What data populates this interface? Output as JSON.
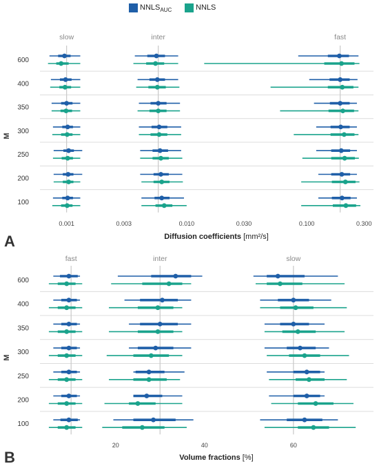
{
  "colors": {
    "nnls_auc": "#1f5fa8",
    "nnls": "#1aa38c",
    "grid": "#dcdcdc",
    "ref": "#c8c8c8"
  },
  "legend": {
    "auc_prefix": "NNLS",
    "auc_sub": "AUC",
    "nnls_label": "NNLS"
  },
  "chart_data": [
    {
      "type": "forest",
      "panel_label": "A",
      "xscale": "log",
      "xlabel_bold": "Diffusion coefficients",
      "xlabel_unit": "[mm²/s]",
      "ylabel": "M",
      "xlim": [
        0.0006,
        0.36
      ],
      "xticks": [
        0.001,
        0.003,
        0.01,
        0.03,
        0.1,
        0.3
      ],
      "xtick_labels": [
        "0.001",
        "0.003",
        "0.010",
        "0.030",
        "0.100",
        "0.300"
      ],
      "groups": [
        "slow",
        "inter",
        "fast"
      ],
      "group_label_x": [
        0.001,
        0.0058,
        0.19
      ],
      "reference_lines": [
        0.001,
        0.0058,
        0.19
      ],
      "rows": [
        "600",
        "400",
        "350",
        "300",
        "250",
        "200",
        "100"
      ],
      "series": [
        {
          "name": "NNLS_AUC",
          "points": {
            "slow": [
              [
                0.00096,
                0.00072,
                0.0013,
                0.00085,
                0.00108
              ],
              [
                0.00098,
                0.00074,
                0.0013,
                0.00088,
                0.0011
              ],
              [
                0.001,
                0.00075,
                0.0013,
                0.0009,
                0.00112
              ],
              [
                0.00102,
                0.00077,
                0.0013,
                0.00092,
                0.00113
              ],
              [
                0.00104,
                0.00078,
                0.00135,
                0.00094,
                0.00115
              ],
              [
                0.00103,
                0.00078,
                0.00135,
                0.00093,
                0.00114
              ],
              [
                0.00102,
                0.00077,
                0.0013,
                0.00092,
                0.00113
              ]
            ],
            "inter": [
              [
                0.0056,
                0.0037,
                0.0085,
                0.0047,
                0.0066
              ],
              [
                0.0057,
                0.0039,
                0.0085,
                0.0049,
                0.0066
              ],
              [
                0.0058,
                0.004,
                0.0088,
                0.005,
                0.0068
              ],
              [
                0.0059,
                0.004,
                0.009,
                0.0051,
                0.0069
              ],
              [
                0.006,
                0.0041,
                0.009,
                0.0052,
                0.007
              ],
              [
                0.0061,
                0.0041,
                0.0092,
                0.0053,
                0.0071
              ],
              [
                0.0062,
                0.0042,
                0.0095,
                0.0054,
                0.0072
              ]
            ],
            "fast": [
              [
                0.187,
                0.085,
                0.27,
                0.15,
                0.225
              ],
              [
                0.19,
                0.105,
                0.265,
                0.155,
                0.228
              ],
              [
                0.19,
                0.115,
                0.262,
                0.156,
                0.228
              ],
              [
                0.192,
                0.12,
                0.262,
                0.158,
                0.228
              ],
              [
                0.194,
                0.12,
                0.262,
                0.16,
                0.23
              ],
              [
                0.196,
                0.125,
                0.262,
                0.16,
                0.23
              ],
              [
                0.197,
                0.125,
                0.262,
                0.162,
                0.232
              ]
            ]
          }
        },
        {
          "name": "NNLS",
          "points": {
            "slow": [
              [
                0.0009,
                0.0007,
                0.0013,
                0.00082,
                0.00104
              ],
              [
                0.00097,
                0.00073,
                0.0013,
                0.00087,
                0.00109
              ],
              [
                0.00099,
                0.00075,
                0.0013,
                0.00089,
                0.00111
              ],
              [
                0.00101,
                0.00076,
                0.0013,
                0.0009,
                0.00112
              ],
              [
                0.00102,
                0.00077,
                0.0013,
                0.00091,
                0.00113
              ],
              [
                0.00104,
                0.00078,
                0.0013,
                0.00093,
                0.00114
              ],
              [
                0.00101,
                0.00076,
                0.0013,
                0.0009,
                0.00112
              ]
            ],
            "inter": [
              [
                0.0055,
                0.0036,
                0.0085,
                0.0046,
                0.0065
              ],
              [
                0.0057,
                0.0038,
                0.0087,
                0.0048,
                0.0067
              ],
              [
                0.0058,
                0.0039,
                0.0088,
                0.0049,
                0.0068
              ],
              [
                0.0059,
                0.004,
                0.009,
                0.005,
                0.0069
              ],
              [
                0.0061,
                0.0041,
                0.0092,
                0.0052,
                0.0071
              ],
              [
                0.0062,
                0.0042,
                0.0093,
                0.0053,
                0.0072
              ],
              [
                0.0065,
                0.0042,
                0.01,
                0.0055,
                0.0076
              ]
            ],
            "fast": [
              [
                0.195,
                0.014,
                0.275,
                0.14,
                0.25
              ],
              [
                0.198,
                0.05,
                0.27,
                0.15,
                0.245
              ],
              [
                0.2,
                0.06,
                0.27,
                0.152,
                0.248
              ],
              [
                0.205,
                0.078,
                0.27,
                0.158,
                0.25
              ],
              [
                0.207,
                0.092,
                0.272,
                0.16,
                0.252
              ],
              [
                0.21,
                0.09,
                0.275,
                0.162,
                0.255
              ],
              [
                0.212,
                0.09,
                0.28,
                0.165,
                0.258
              ]
            ]
          }
        }
      ]
    },
    {
      "type": "forest",
      "panel_label": "B",
      "xscale": "linear",
      "xlabel_bold": "Volume fractions",
      "xlabel_unit": "[%]",
      "ylabel": "M",
      "xlim": [
        3,
        78
      ],
      "xticks": [
        20,
        40,
        60
      ],
      "xtick_labels": [
        "20",
        "40",
        "60"
      ],
      "groups": [
        "fast",
        "inter",
        "slow"
      ],
      "group_label_x": [
        10,
        30,
        60
      ],
      "reference_lines": [
        10,
        30,
        60
      ],
      "rows": [
        "600",
        "400",
        "350",
        "300",
        "250",
        "200",
        "100"
      ],
      "series": [
        {
          "name": "NNLS_AUC",
          "points": {
            "fast": [
              [
                9.5,
                6,
                12,
                7.5,
                11.5
              ],
              [
                9.5,
                6,
                12,
                7.8,
                11.3
              ],
              [
                9.5,
                6,
                12,
                7.8,
                11.3
              ],
              [
                9.5,
                6,
                12,
                7.8,
                11.3
              ],
              [
                9.5,
                6,
                12,
                7.8,
                11.3
              ],
              [
                9.5,
                6,
                12,
                7.8,
                11.3
              ],
              [
                9.5,
                6,
                12,
                7.6,
                11.5
              ]
            ],
            "inter": [
              [
                33.5,
                20.5,
                39.5,
                28,
                37
              ],
              [
                30.5,
                22,
                37,
                25.5,
                34
              ],
              [
                30,
                23,
                37,
                25.5,
                34
              ],
              [
                29,
                23,
                37,
                25,
                33
              ],
              [
                27.5,
                24,
                35.5,
                24.5,
                31
              ],
              [
                27,
                24,
                35,
                24,
                30.5
              ],
              [
                28.5,
                19.5,
                37.5,
                24,
                33.5
              ]
            ],
            "slow": [
              [
                56.5,
                51,
                70,
                54,
                62.5
              ],
              [
                60,
                52.5,
                68.5,
                56.5,
                63.5
              ],
              [
                60,
                53.5,
                67,
                57,
                63.5
              ],
              [
                61.5,
                53.5,
                68,
                58.5,
                65
              ],
              [
                63,
                54,
                67,
                60,
                66
              ],
              [
                63,
                54.5,
                67,
                60,
                66
              ],
              [
                62.5,
                52.5,
                70,
                58.5,
                66.5
              ]
            ]
          }
        },
        {
          "name": "NNLS",
          "points": {
            "fast": [
              [
                9,
                5,
                12.5,
                7,
                11
              ],
              [
                9,
                5,
                12.5,
                7,
                11
              ],
              [
                9,
                5,
                12.5,
                7,
                11
              ],
              [
                9,
                5,
                12.5,
                7,
                11
              ],
              [
                9,
                5,
                12.5,
                7,
                11
              ],
              [
                9,
                5,
                12.5,
                7,
                11
              ],
              [
                9,
                5,
                12.5,
                7,
                11
              ]
            ],
            "inter": [
              [
                32,
                19,
                37,
                26,
                35
              ],
              [
                29.5,
                18.5,
                35,
                25,
                33
              ],
              [
                29.5,
                18.5,
                35,
                25,
                33
              ],
              [
                28,
                18,
                35,
                24,
                32
              ],
              [
                27.5,
                18.5,
                34.5,
                24,
                31.5
              ],
              [
                25,
                17.5,
                35,
                23,
                29
              ],
              [
                26,
                17,
                36,
                21.5,
                31
              ]
            ],
            "slow": [
              [
                57,
                51.5,
                71.5,
                54,
                62
              ],
              [
                60.5,
                52.5,
                72,
                57,
                64.5
              ],
              [
                61,
                53.5,
                71.5,
                57.5,
                65
              ],
              [
                62.5,
                54,
                72.5,
                59,
                66
              ],
              [
                63.5,
                54.5,
                72,
                60.5,
                67
              ],
              [
                65,
                55,
                73.5,
                61,
                69
              ],
              [
                64.5,
                53.5,
                74,
                61,
                68
              ]
            ]
          }
        }
      ]
    }
  ]
}
